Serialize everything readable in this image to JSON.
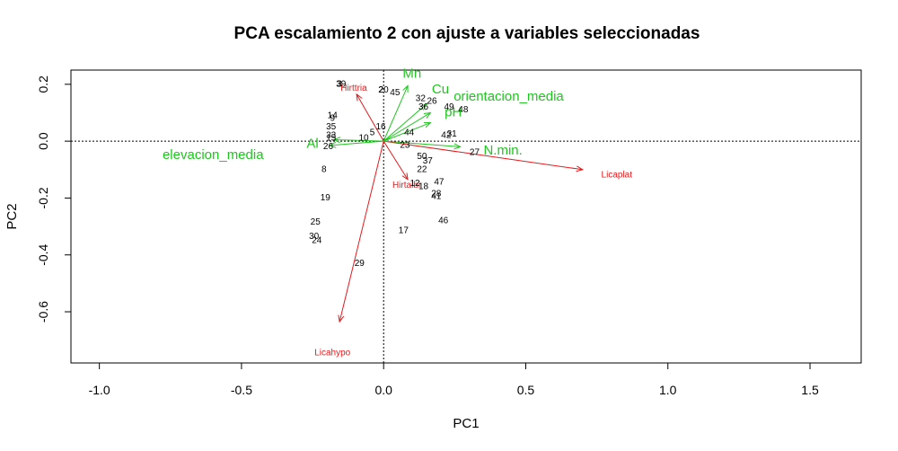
{
  "colors": {
    "species": "#e41a1c",
    "environment": "#1fc51f",
    "axis": "#000000",
    "background": "#ffffff"
  },
  "chart_data": {
    "type": "scatter",
    "title": "PCA escalamiento 2 con ajuste a variables seleccionadas",
    "xlabel": "PC1",
    "ylabel": "PC2",
    "xlim": [
      -1.1,
      1.68
    ],
    "ylim": [
      -0.78,
      0.25
    ],
    "x_ticks": [
      -1.0,
      -0.5,
      0.0,
      0.5,
      1.0,
      1.5
    ],
    "x_tick_labels": [
      "-1.0",
      "-0.5",
      "0.0",
      "0.5",
      "1.0",
      "1.5"
    ],
    "y_ticks": [
      0.2,
      0.0,
      -0.2,
      -0.4,
      -0.6
    ],
    "y_tick_labels": [
      "0.2",
      "0.0",
      "-0.2",
      "-0.4",
      "-0.6"
    ],
    "zero_reference_lines": true,
    "sites": [
      {
        "label": "39",
        "x": -0.15,
        "y": 0.2
      },
      {
        "label": "3",
        "x": -0.155,
        "y": 0.2
      },
      {
        "label": "2",
        "x": -0.01,
        "y": 0.18
      },
      {
        "label": "20",
        "x": 0.0,
        "y": 0.18
      },
      {
        "label": "45",
        "x": 0.04,
        "y": 0.17
      },
      {
        "label": "32",
        "x": 0.13,
        "y": 0.15
      },
      {
        "label": "26",
        "x": 0.17,
        "y": 0.14
      },
      {
        "label": "36",
        "x": 0.14,
        "y": 0.12
      },
      {
        "label": "49",
        "x": 0.23,
        "y": 0.12
      },
      {
        "label": "48",
        "x": 0.28,
        "y": 0.11
      },
      {
        "label": "14",
        "x": -0.18,
        "y": 0.09
      },
      {
        "label": "9",
        "x": -0.18,
        "y": 0.08
      },
      {
        "label": "35",
        "x": -0.185,
        "y": 0.05
      },
      {
        "label": "33",
        "x": -0.185,
        "y": 0.02
      },
      {
        "label": "15",
        "x": -0.185,
        "y": 0.01
      },
      {
        "label": "16",
        "x": -0.01,
        "y": 0.05
      },
      {
        "label": "5",
        "x": -0.04,
        "y": 0.03
      },
      {
        "label": "10",
        "x": -0.07,
        "y": 0.01
      },
      {
        "label": "44",
        "x": 0.09,
        "y": 0.03
      },
      {
        "label": "42",
        "x": 0.22,
        "y": 0.02
      },
      {
        "label": "31",
        "x": 0.24,
        "y": 0.025
      },
      {
        "label": "26",
        "x": -0.195,
        "y": -0.02
      },
      {
        "label": "23",
        "x": 0.075,
        "y": -0.015
      },
      {
        "label": "27",
        "x": 0.32,
        "y": -0.04
      },
      {
        "label": "50",
        "x": 0.135,
        "y": -0.055
      },
      {
        "label": "37",
        "x": 0.155,
        "y": -0.07
      },
      {
        "label": "8",
        "x": -0.21,
        "y": -0.1
      },
      {
        "label": "22",
        "x": 0.135,
        "y": -0.1
      },
      {
        "label": "47",
        "x": 0.195,
        "y": -0.145
      },
      {
        "label": "12",
        "x": 0.11,
        "y": -0.15
      },
      {
        "label": "18",
        "x": 0.14,
        "y": -0.16
      },
      {
        "label": "28",
        "x": 0.185,
        "y": -0.185
      },
      {
        "label": "41",
        "x": 0.185,
        "y": -0.195
      },
      {
        "label": "19",
        "x": -0.205,
        "y": -0.2
      },
      {
        "label": "46",
        "x": 0.21,
        "y": -0.28
      },
      {
        "label": "25",
        "x": -0.24,
        "y": -0.285
      },
      {
        "label": "17",
        "x": 0.07,
        "y": -0.315
      },
      {
        "label": "30",
        "x": -0.245,
        "y": -0.335
      },
      {
        "label": "24",
        "x": -0.235,
        "y": -0.35
      },
      {
        "label": "29",
        "x": -0.085,
        "y": -0.43
      }
    ],
    "species_arrows": [
      {
        "name": "Hirttria",
        "x": -0.095,
        "y": 0.165,
        "label_x": -0.105,
        "label_y": 0.185
      },
      {
        "name": "Licaplat",
        "x": 0.7,
        "y": -0.1,
        "label_x": 0.82,
        "label_y": -0.12
      },
      {
        "name": "Hirtalbi",
        "x": 0.085,
        "y": -0.135,
        "label_x": 0.08,
        "label_y": -0.155
      },
      {
        "name": "Licahypo",
        "x": -0.155,
        "y": -0.635,
        "label_x": -0.18,
        "label_y": -0.745
      }
    ],
    "environment_arrows": [
      {
        "name": "Mn",
        "x": 0.085,
        "y": 0.195,
        "label_x": 0.1,
        "label_y": 0.235
      },
      {
        "name": "Cu",
        "x": 0.15,
        "y": 0.13,
        "label_x": 0.2,
        "label_y": 0.18
      },
      {
        "name": "orientacion_media",
        "x": 0.165,
        "y": 0.1,
        "label_x": 0.44,
        "label_y": 0.155
      },
      {
        "name": "pH",
        "x": 0.165,
        "y": 0.065,
        "label_x": 0.245,
        "label_y": 0.1
      },
      {
        "name": "N.min.",
        "x": 0.27,
        "y": -0.02,
        "label_x": 0.42,
        "label_y": -0.035
      },
      {
        "name": "Al",
        "x": -0.175,
        "y": 0.005,
        "label_x": -0.25,
        "label_y": -0.01
      },
      {
        "name": "elevacion_media",
        "x": -0.19,
        "y": -0.015,
        "label_x": -0.6,
        "label_y": -0.05
      }
    ]
  }
}
